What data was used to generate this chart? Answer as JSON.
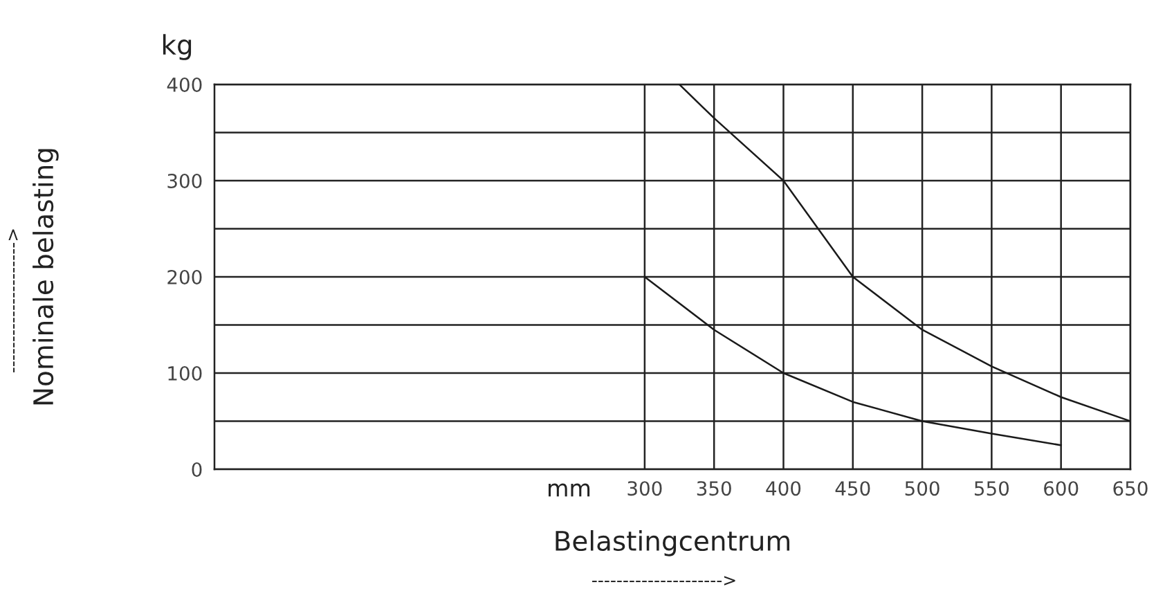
{
  "chart_data": {
    "type": "line",
    "xlabel": "Belastingcentrum",
    "ylabel": "Nominale belasting",
    "annotations": [
      "kg",
      "mm",
      "--------------------->",
      "--------------------->"
    ],
    "series": [
      {
        "color": "#1a1a1a",
        "x": [
          325,
          350,
          400,
          450,
          500,
          550,
          600,
          650
        ],
        "values": [
          400,
          365,
          300,
          200,
          145,
          107,
          75,
          50
        ]
      },
      {
        "color": "#1a1a1a",
        "x": [
          300,
          350,
          400,
          450,
          500,
          550,
          600
        ],
        "values": [
          200,
          145,
          100,
          70,
          50,
          37,
          25
        ]
      }
    ],
    "xlim": [
      -10,
      650
    ],
    "xticks": [
      300,
      350,
      400,
      450,
      500,
      550,
      600,
      650
    ],
    "ylim": [
      0,
      400
    ],
    "yticks": [
      0,
      {
        "value": 50,
        "label": null
      },
      100,
      {
        "value": 150,
        "label": null
      },
      200,
      {
        "value": 250,
        "label": null
      },
      300,
      {
        "value": 350,
        "label": null
      },
      400
    ],
    "grid": true,
    "legend": false,
    "marker": "none",
    "line_style": "solid"
  }
}
